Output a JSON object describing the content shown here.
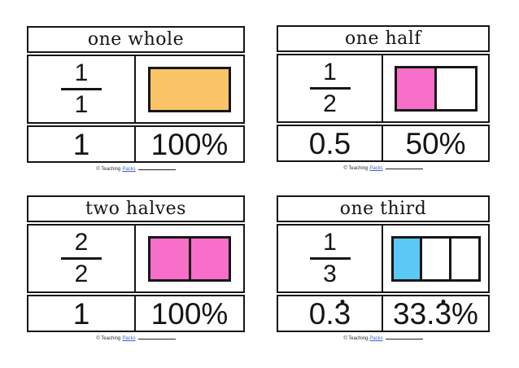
{
  "page": {
    "background": "#ffffff",
    "border_color": "#161616"
  },
  "colors": {
    "orange": "#F9C468",
    "pink": "#F76FC8",
    "blue": "#5CC8F6",
    "white": "#FFFFFF",
    "link_blue": "#4064C8"
  },
  "cards": [
    {
      "title": "one whole",
      "fraction": {
        "numerator": "1",
        "denominator": "1"
      },
      "shape": {
        "kind": "rectangle-1-part",
        "segments": [
          "#F9C468"
        ]
      },
      "decimal": {
        "pre": "1",
        "rec": "",
        "post": ""
      },
      "percent": {
        "pre": "100%",
        "rec": "",
        "post": ""
      }
    },
    {
      "title": "one half",
      "fraction": {
        "numerator": "1",
        "denominator": "2"
      },
      "shape": {
        "kind": "rectangle-2-parts",
        "segments": [
          "#F76FC8",
          "#FFFFFF"
        ]
      },
      "decimal": {
        "pre": "0.5",
        "rec": "",
        "post": ""
      },
      "percent": {
        "pre": "50%",
        "rec": "",
        "post": ""
      }
    },
    {
      "title": "two halves",
      "fraction": {
        "numerator": "2",
        "denominator": "2"
      },
      "shape": {
        "kind": "rectangle-2-parts",
        "segments": [
          "#F76FC8",
          "#F76FC8"
        ]
      },
      "decimal": {
        "pre": "1",
        "rec": "",
        "post": ""
      },
      "percent": {
        "pre": "100%",
        "rec": "",
        "post": ""
      }
    },
    {
      "title": "one third",
      "fraction": {
        "numerator": "1",
        "denominator": "3"
      },
      "shape": {
        "kind": "rectangle-3-parts",
        "segments": [
          "#5CC8F6",
          "#FFFFFF",
          "#FFFFFF"
        ]
      },
      "decimal": {
        "pre": "0.",
        "rec": "3",
        "post": ""
      },
      "percent": {
        "pre": "33.",
        "rec": "3",
        "post": "%"
      }
    }
  ],
  "footer": {
    "copyright": "© Teaching",
    "link": "Packs"
  }
}
